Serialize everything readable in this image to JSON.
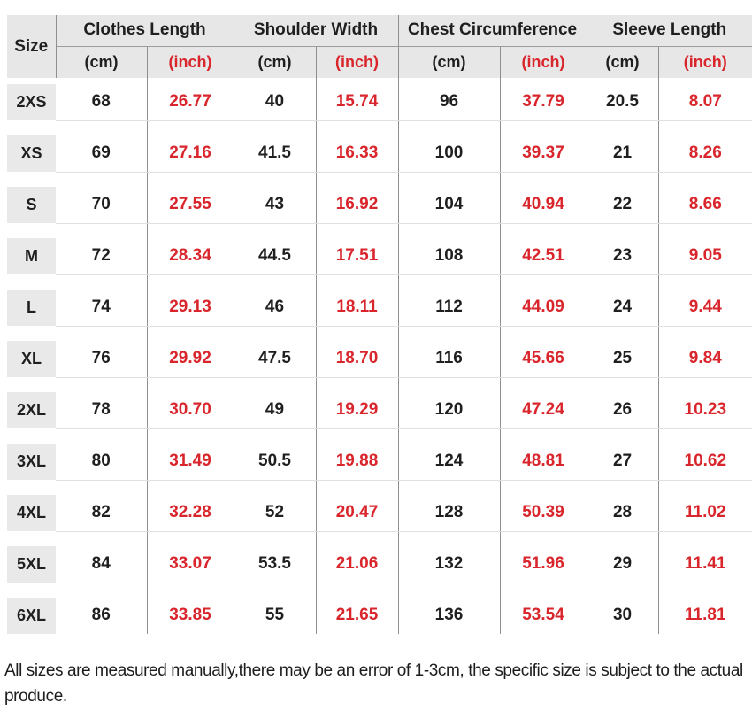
{
  "chart_data": {
    "type": "table",
    "corner_label": "Size",
    "column_groups": [
      "Clothes Length",
      "Shoulder Width",
      "Chest Circumference",
      "Sleeve Length"
    ],
    "unit_labels": {
      "cm": "(cm)",
      "inch": "(inch)"
    },
    "rows": [
      {
        "size": "2XS",
        "values": [
          "68",
          "26.77",
          "40",
          "15.74",
          "96",
          "37.79",
          "20.5",
          "8.07"
        ]
      },
      {
        "size": "XS",
        "values": [
          "69",
          "27.16",
          "41.5",
          "16.33",
          "100",
          "39.37",
          "21",
          "8.26"
        ]
      },
      {
        "size": "S",
        "values": [
          "70",
          "27.55",
          "43",
          "16.92",
          "104",
          "40.94",
          "22",
          "8.66"
        ]
      },
      {
        "size": "M",
        "values": [
          "72",
          "28.34",
          "44.5",
          "17.51",
          "108",
          "42.51",
          "23",
          "9.05"
        ]
      },
      {
        "size": "L",
        "values": [
          "74",
          "29.13",
          "46",
          "18.11",
          "112",
          "44.09",
          "24",
          "9.44"
        ]
      },
      {
        "size": "XL",
        "values": [
          "76",
          "29.92",
          "47.5",
          "18.70",
          "116",
          "45.66",
          "25",
          "9.84"
        ]
      },
      {
        "size": "2XL",
        "values": [
          "78",
          "30.70",
          "49",
          "19.29",
          "120",
          "47.24",
          "26",
          "10.23"
        ]
      },
      {
        "size": "3XL",
        "values": [
          "80",
          "31.49",
          "50.5",
          "19.88",
          "124",
          "48.81",
          "27",
          "10.62"
        ]
      },
      {
        "size": "4XL",
        "values": [
          "82",
          "32.28",
          "52",
          "20.47",
          "128",
          "50.39",
          "28",
          "11.02"
        ]
      },
      {
        "size": "5XL",
        "values": [
          "84",
          "33.07",
          "53.5",
          "21.06",
          "132",
          "51.96",
          "29",
          "11.41"
        ]
      },
      {
        "size": "6XL",
        "values": [
          "86",
          "33.85",
          "55",
          "21.65",
          "136",
          "53.54",
          "30",
          "11.81"
        ]
      }
    ]
  },
  "footer": {
    "note": "All sizes are measured manually,there may be an error of 1-3cm, the specific size is subject to the actual produce."
  },
  "colors": {
    "accent_red": "#d9262c",
    "text_black": "#1f1f1f",
    "header_bg": "#e7e7e7",
    "size_chip_bg": "#e9e9e9",
    "grid_dark": "#8f8f8f",
    "grid_light": "#e0e0e0"
  }
}
